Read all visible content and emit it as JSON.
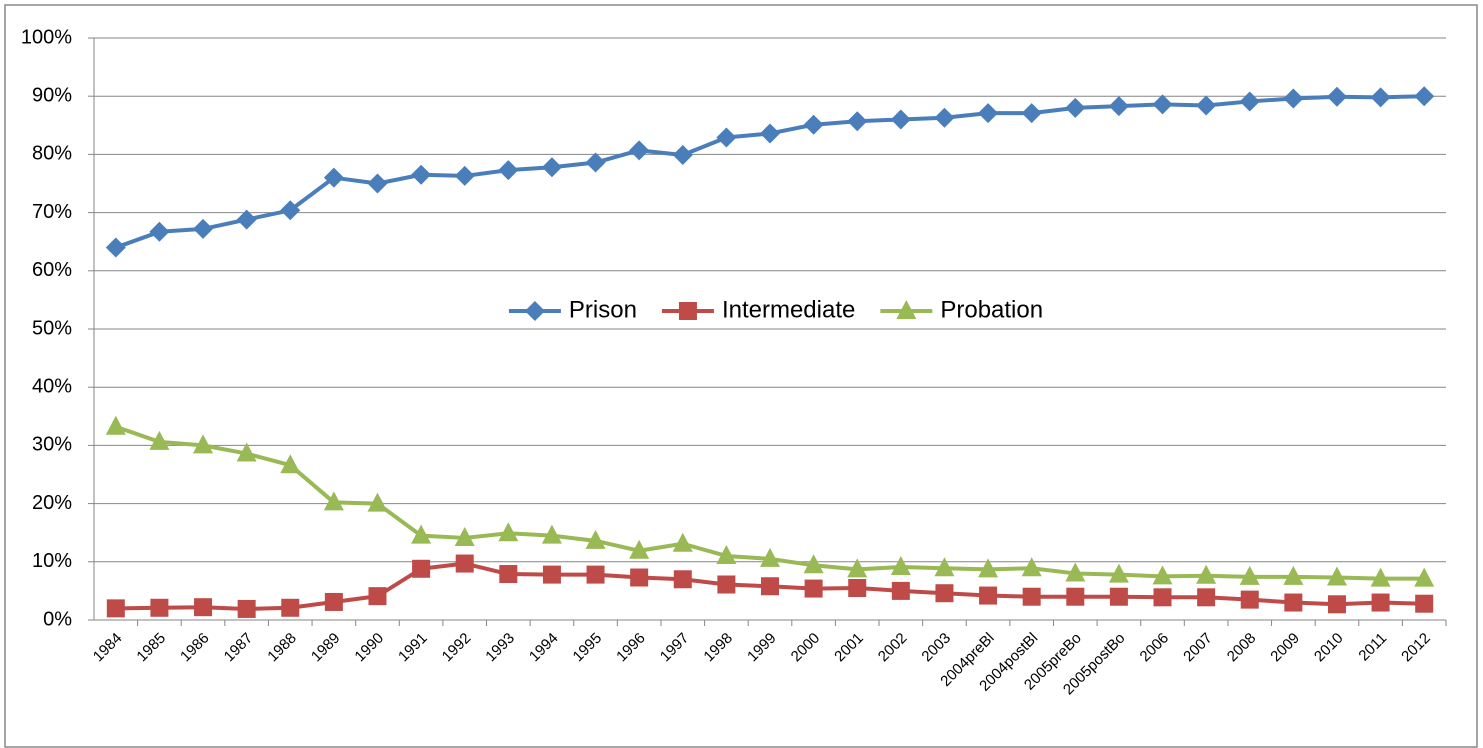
{
  "chart_data": {
    "type": "line",
    "categories": [
      "1984",
      "1985",
      "1986",
      "1987",
      "1988",
      "1989",
      "1990",
      "1991",
      "1992",
      "1993",
      "1994",
      "1995",
      "1996",
      "1997",
      "1998",
      "1999",
      "2000",
      "2001",
      "2002",
      "2003",
      "2004preBl",
      "2004postBl",
      "2005preBo",
      "2005postBo",
      "2006",
      "2007",
      "2008",
      "2009",
      "2010",
      "2011",
      "2012"
    ],
    "series": [
      {
        "name": "Prison",
        "color": "#4a7ebb",
        "marker": "diamond",
        "values": [
          64,
          66.7,
          67.2,
          68.8,
          70.4,
          76,
          75,
          76.5,
          76.3,
          77.3,
          77.8,
          78.6,
          80.7,
          79.9,
          82.9,
          83.6,
          85.1,
          85.7,
          86,
          86.3,
          87.1,
          87.1,
          88,
          88.3,
          88.6,
          88.4,
          89.1,
          89.6,
          89.9,
          89.8,
          90
        ]
      },
      {
        "name": "Intermediate",
        "color": "#be4b48",
        "marker": "square",
        "values": [
          2.0,
          2.1,
          2.2,
          1.9,
          2.1,
          3.1,
          4.1,
          8.8,
          9.7,
          7.9,
          7.8,
          7.8,
          7.3,
          7.0,
          6.1,
          5.8,
          5.4,
          5.5,
          5.0,
          4.6,
          4.2,
          4.0,
          4.0,
          4.0,
          3.9,
          3.9,
          3.5,
          3.0,
          2.7,
          3.0,
          2.8
        ]
      },
      {
        "name": "Probation",
        "color": "#98b954",
        "marker": "triangle",
        "values": [
          33.2,
          30.6,
          30.0,
          28.6,
          26.6,
          20.2,
          20.0,
          14.5,
          14.1,
          14.9,
          14.5,
          13.6,
          11.9,
          13.1,
          11.0,
          10.5,
          9.4,
          8.7,
          9.1,
          8.9,
          8.7,
          8.9,
          8.0,
          7.8,
          7.5,
          7.6,
          7.4,
          7.4,
          7.3,
          7.1,
          7.1
        ]
      }
    ],
    "ylim": [
      0,
      100
    ],
    "yticks": [
      {
        "value": 0,
        "label": "0%"
      },
      {
        "value": 10,
        "label": "10%"
      },
      {
        "value": 20,
        "label": "20%"
      },
      {
        "value": 30,
        "label": "30%"
      },
      {
        "value": 40,
        "label": "40%"
      },
      {
        "value": 50,
        "label": "50%"
      },
      {
        "value": 60,
        "label": "60%"
      },
      {
        "value": 70,
        "label": "70%"
      },
      {
        "value": 80,
        "label": "80%"
      },
      {
        "value": 90,
        "label": "90%"
      },
      {
        "value": 100,
        "label": "100%"
      }
    ],
    "grid": true,
    "legend": "center"
  }
}
